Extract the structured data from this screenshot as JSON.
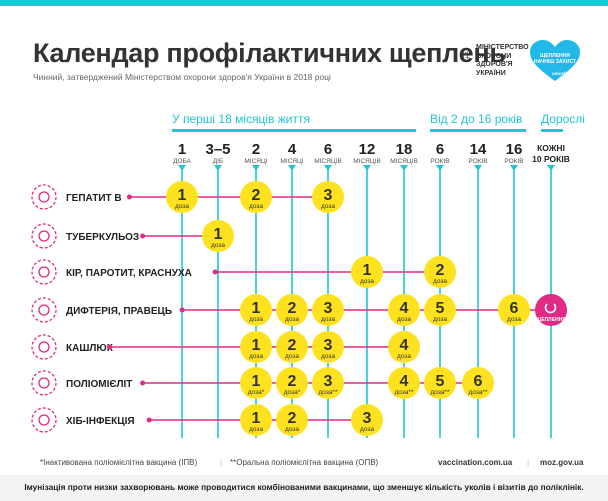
{
  "header": {
    "title": "Календар профілактичних щеплень",
    "subtitle": "Чинний, затверджений Міністерством охорони здоров'я України в 2018 році",
    "ministry": [
      "МІНІСТЕРСТВО",
      "ОХОРОНИ",
      "ЗДОРОВ'Я",
      "УКРАЇНИ"
    ],
    "badge_lines": [
      "ЩЕПЛЕННЯ",
      "НАЧНІШ ЗАХИСТ"
    ],
    "badge_unicef": "unicef"
  },
  "colors": {
    "accent": "#20c5d6",
    "dose": "#ffe21f",
    "pink": "#e02a85",
    "text": "#333333"
  },
  "age_groups": [
    {
      "label": "У перші 18 місяців життя",
      "from": 0,
      "to": 6
    },
    {
      "label": "Від 2 до 16 років",
      "from": 7,
      "to": 9
    },
    {
      "label": "Дорослі",
      "from": 10,
      "to": 10
    }
  ],
  "ages": [
    {
      "num": "1",
      "unit": "ДОБА"
    },
    {
      "num": "3–5",
      "unit": "ДІБ"
    },
    {
      "num": "2",
      "unit": "МІСЯЦІ"
    },
    {
      "num": "4",
      "unit": "МІСЯЦІ"
    },
    {
      "num": "6",
      "unit": "МІСЯЦІВ"
    },
    {
      "num": "12",
      "unit": "МІСЯЦІВ"
    },
    {
      "num": "18",
      "unit": "МІСЯЦІВ"
    },
    {
      "num": "6",
      "unit": "РОКІВ"
    },
    {
      "num": "14",
      "unit": "РОКІВ"
    },
    {
      "num": "16",
      "unit": "РОКІВ"
    },
    {
      "num": "КОЖНІ",
      "unit": "10 РОКІВ"
    }
  ],
  "dose_word": "доза",
  "adult_badge": "ЩЕПЛЕННЯ",
  "vaccines": [
    {
      "name": "ГЕПАТИТ В",
      "icon": "hepatitis-icon",
      "doses": [
        {
          "col": 0,
          "n": "1"
        },
        {
          "col": 2,
          "n": "2"
        },
        {
          "col": 4,
          "n": "3"
        }
      ]
    },
    {
      "name": "ТУБЕРКУЛЬОЗ",
      "icon": "tuberculosis-icon",
      "doses": [
        {
          "col": 1,
          "n": "1"
        }
      ]
    },
    {
      "name": "КІР, ПАРОТИТ, КРАСНУХА",
      "icon": "measles-icon",
      "doses": [
        {
          "col": 5,
          "n": "1"
        },
        {
          "col": 7,
          "n": "2"
        }
      ]
    },
    {
      "name": "ДИФТЕРІЯ, ПРАВЕЦЬ",
      "icon": "diphtheria-icon",
      "doses": [
        {
          "col": 2,
          "n": "1"
        },
        {
          "col": 3,
          "n": "2"
        },
        {
          "col": 4,
          "n": "3"
        },
        {
          "col": 6,
          "n": "4"
        },
        {
          "col": 7,
          "n": "5"
        },
        {
          "col": 9,
          "n": "6"
        }
      ],
      "adult": true
    },
    {
      "name": "КАШЛЮК",
      "icon": "pertussis-icon",
      "doses": [
        {
          "col": 2,
          "n": "1"
        },
        {
          "col": 3,
          "n": "2"
        },
        {
          "col": 4,
          "n": "3"
        },
        {
          "col": 6,
          "n": "4"
        }
      ]
    },
    {
      "name": "ПОЛІОМІЄЛІТ",
      "icon": "polio-icon",
      "doses": [
        {
          "col": 2,
          "n": "1",
          "mark": "*"
        },
        {
          "col": 3,
          "n": "2",
          "mark": "*"
        },
        {
          "col": 4,
          "n": "3",
          "mark": "**"
        },
        {
          "col": 6,
          "n": "4",
          "mark": "**"
        },
        {
          "col": 7,
          "n": "5",
          "mark": "**"
        },
        {
          "col": 8,
          "n": "6",
          "mark": "**"
        }
      ]
    },
    {
      "name": "ХІБ-ІНФЕКЦІЯ",
      "icon": "hib-icon",
      "doses": [
        {
          "col": 2,
          "n": "1"
        },
        {
          "col": 3,
          "n": "2"
        },
        {
          "col": 5,
          "n": "3"
        }
      ]
    }
  ],
  "footnotes": {
    "ipv": "*Інактивована поліомієлітна вакцина (ІПВ)",
    "opv": "**Оральна поліомієлітна вакцина (ОПВ)",
    "site1": "vaccination.com.ua",
    "site2": "moz.gov.ua"
  },
  "footer": "Імунізація проти низки захворювань може проводитися комбінованими вакцинами, що зменшує кількість уколів і візитів до поліклінік."
}
